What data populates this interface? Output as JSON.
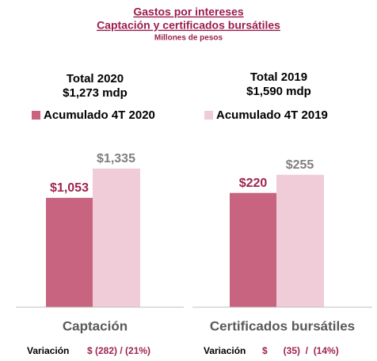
{
  "header": {
    "title": "Gastos por intereses",
    "subtitle": "Captación y certificados bursátiles",
    "unit": "Millones de pesos"
  },
  "totals": [
    {
      "label": "Total 2020",
      "value": "$1,273 mdp"
    },
    {
      "label": "Total 2019",
      "value": "$1,590 mdp"
    }
  ],
  "chart_data": [
    {
      "type": "bar",
      "categories": [
        "Captación"
      ],
      "series": [
        {
          "name": "Acumulado 4T 2020",
          "color": "#c8647f",
          "values": [
            1053
          ],
          "value_labels": [
            "$1,053"
          ]
        },
        {
          "name": "Acumulado 4T 2019",
          "color": "#f0ccd8",
          "values": [
            1335
          ],
          "value_labels": [
            "$1,335"
          ]
        }
      ],
      "ylim": [
        0,
        1700
      ],
      "variation": {
        "label": "Variación",
        "text": "$ (282) / (21%)"
      }
    },
    {
      "type": "bar",
      "categories": [
        "Certificados bursátiles"
      ],
      "series": [
        {
          "color": "#c8647f",
          "values": [
            220
          ],
          "value_labels": [
            "$220"
          ]
        },
        {
          "color": "#f0ccd8",
          "values": [
            255
          ],
          "value_labels": [
            "$255"
          ]
        }
      ],
      "ylim": [
        0,
        340
      ],
      "variation": {
        "label": "Variación",
        "text": "$      (35)  /  (14%)"
      }
    }
  ]
}
